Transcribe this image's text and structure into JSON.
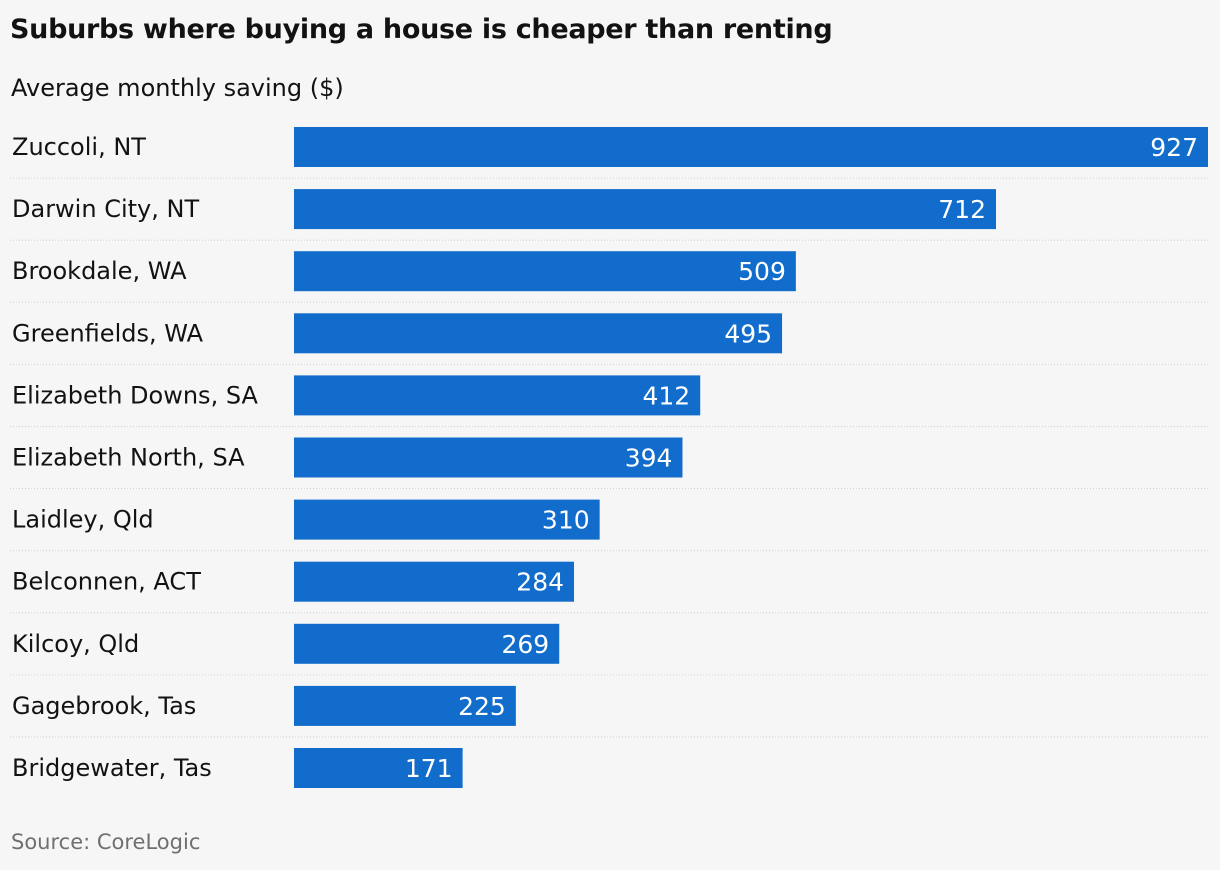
{
  "chart_data": {
    "type": "bar",
    "orientation": "horizontal",
    "title": "Suburbs where buying a house is cheaper than renting",
    "subtitle": "Average monthly saving ($)",
    "categories": [
      "Zuccoli, NT",
      "Darwin City, NT",
      "Brookdale, WA",
      "Greenfields, WA",
      "Elizabeth Downs, SA",
      "Elizabeth North, SA",
      "Laidley, Qld",
      "Belconnen, ACT",
      "Kilcoy, Qld",
      "Gagebrook, Tas",
      "Bridgewater, Tas"
    ],
    "values": [
      927,
      712,
      509,
      495,
      412,
      394,
      310,
      284,
      269,
      225,
      171
    ],
    "value_labels": [
      "927",
      "712",
      "509",
      "495",
      "412",
      "394",
      "310",
      "284",
      "269",
      "225",
      "171"
    ],
    "xlim": [
      0,
      927
    ],
    "grid": false,
    "bar_color": "#116ccb",
    "label_color": "#ffffff",
    "separator_color": "#cfcfcf",
    "source": "Source: CoreLogic"
  }
}
